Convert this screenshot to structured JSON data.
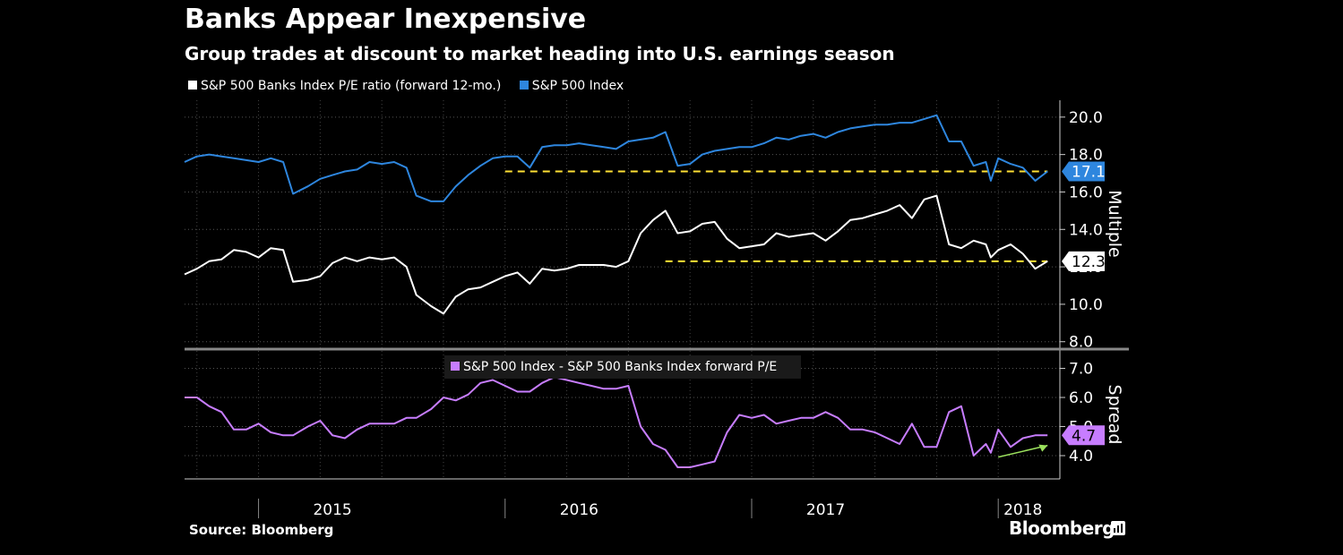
{
  "title": "Banks Appear Inexpensive",
  "subtitle": "Group trades at discount to market heading into U.S. earnings season",
  "source": "Source: Bloomberg",
  "brand": "Bloomberg",
  "colors": {
    "banks": "#ffffff",
    "sp500": "#2e86de",
    "spread": "#c77dff",
    "reference": "#ffe135",
    "arrow": "#9be15d"
  },
  "chart_data": [
    {
      "type": "line",
      "panel": "top",
      "ylabel": "Multiple",
      "ylim": [
        7.7,
        20.9
      ],
      "yticks": [
        8.0,
        10.0,
        12.0,
        14.0,
        16.0,
        18.0,
        20.0
      ],
      "ytick_labels": [
        "8.0",
        "10.0",
        "12.0",
        "14.0",
        "16.0",
        "18.0",
        "20.0"
      ],
      "xlim": [
        2014.7,
        2018.25
      ],
      "grid": true,
      "legend_position": "top-left",
      "series": [
        {
          "name": "S&P 500 Banks Index P/E ratio (forward 12-mo.)",
          "color": "#ffffff",
          "last_label": "12.3",
          "x": [
            2014.7,
            2014.75,
            2014.8,
            2014.85,
            2014.9,
            2014.95,
            2015.0,
            2015.05,
            2015.1,
            2015.14,
            2015.2,
            2015.25,
            2015.3,
            2015.35,
            2015.4,
            2015.45,
            2015.5,
            2015.55,
            2015.6,
            2015.64,
            2015.7,
            2015.75,
            2015.8,
            2015.85,
            2015.9,
            2015.95,
            2016.0,
            2016.05,
            2016.1,
            2016.15,
            2016.2,
            2016.25,
            2016.3,
            2016.35,
            2016.4,
            2016.45,
            2016.5,
            2016.55,
            2016.6,
            2016.65,
            2016.7,
            2016.75,
            2016.8,
            2016.85,
            2016.9,
            2016.95,
            2017.0,
            2017.05,
            2017.1,
            2017.15,
            2017.2,
            2017.25,
            2017.3,
            2017.35,
            2017.4,
            2017.45,
            2017.5,
            2017.55,
            2017.6,
            2017.65,
            2017.7,
            2017.75,
            2017.8,
            2017.85,
            2017.9,
            2017.95,
            2017.97,
            2018.0,
            2018.05,
            2018.1,
            2018.15,
            2018.2
          ],
          "y": [
            11.6,
            11.9,
            12.3,
            12.4,
            12.9,
            12.8,
            12.5,
            13.0,
            12.9,
            11.2,
            11.3,
            11.5,
            12.2,
            12.5,
            12.3,
            12.5,
            12.4,
            12.5,
            12.0,
            10.5,
            9.9,
            9.5,
            10.4,
            10.8,
            10.9,
            11.2,
            11.5,
            11.7,
            11.1,
            11.9,
            11.8,
            11.9,
            12.1,
            12.1,
            12.1,
            12.0,
            12.3,
            13.8,
            14.5,
            15.0,
            13.8,
            13.9,
            14.3,
            14.4,
            13.5,
            13.0,
            13.1,
            13.2,
            13.8,
            13.6,
            13.7,
            13.8,
            13.4,
            13.9,
            14.5,
            14.6,
            14.8,
            15.0,
            15.3,
            14.6,
            15.6,
            15.8,
            13.2,
            13.0,
            13.4,
            13.2,
            12.5,
            12.9,
            13.2,
            12.7,
            11.9,
            12.3
          ]
        },
        {
          "name": "S&P 500 Index",
          "color": "#2e86de",
          "last_label": "17.1",
          "x": [
            2014.7,
            2014.75,
            2014.8,
            2014.85,
            2014.9,
            2014.95,
            2015.0,
            2015.05,
            2015.1,
            2015.14,
            2015.2,
            2015.25,
            2015.3,
            2015.35,
            2015.4,
            2015.45,
            2015.5,
            2015.55,
            2015.6,
            2015.64,
            2015.7,
            2015.75,
            2015.8,
            2015.85,
            2015.9,
            2015.95,
            2016.0,
            2016.05,
            2016.1,
            2016.15,
            2016.2,
            2016.25,
            2016.3,
            2016.35,
            2016.4,
            2016.45,
            2016.5,
            2016.55,
            2016.6,
            2016.65,
            2016.7,
            2016.75,
            2016.8,
            2016.85,
            2016.9,
            2016.95,
            2017.0,
            2017.05,
            2017.1,
            2017.15,
            2017.2,
            2017.25,
            2017.3,
            2017.35,
            2017.4,
            2017.45,
            2017.5,
            2017.55,
            2017.6,
            2017.65,
            2017.7,
            2017.75,
            2017.8,
            2017.85,
            2017.9,
            2017.95,
            2017.97,
            2018.0,
            2018.05,
            2018.1,
            2018.15,
            2018.2
          ],
          "y": [
            17.6,
            17.9,
            18.0,
            17.9,
            17.8,
            17.7,
            17.6,
            17.8,
            17.6,
            15.9,
            16.3,
            16.7,
            16.9,
            17.1,
            17.2,
            17.6,
            17.5,
            17.6,
            17.3,
            15.8,
            15.5,
            15.5,
            16.3,
            16.9,
            17.4,
            17.8,
            17.9,
            17.9,
            17.3,
            18.4,
            18.5,
            18.5,
            18.6,
            18.5,
            18.4,
            18.3,
            18.7,
            18.8,
            18.9,
            19.2,
            17.4,
            17.5,
            18.0,
            18.2,
            18.3,
            18.4,
            18.4,
            18.6,
            18.9,
            18.8,
            19.0,
            19.1,
            18.9,
            19.2,
            19.4,
            19.5,
            19.6,
            19.6,
            19.7,
            19.7,
            19.9,
            20.1,
            18.7,
            18.7,
            17.4,
            17.6,
            16.6,
            17.8,
            17.5,
            17.3,
            16.6,
            17.1
          ]
        }
      ],
      "reference_lines": [
        {
          "series": "S&P 500 Index",
          "y": 17.1,
          "x_start": 2016.0,
          "x_end": 2018.2
        },
        {
          "series": "S&P 500 Banks Index P/E ratio (forward 12-mo.)",
          "y": 12.3,
          "x_start": 2016.65,
          "x_end": 2018.2
        }
      ]
    },
    {
      "type": "line",
      "panel": "bottom",
      "ylabel": "Spread",
      "ylim": [
        3.2,
        7.6
      ],
      "yticks": [
        4.0,
        5.0,
        6.0,
        7.0
      ],
      "ytick_labels": [
        "4.0",
        "5.0",
        "6.0",
        "7.0"
      ],
      "xlim": [
        2014.7,
        2018.25
      ],
      "grid": true,
      "legend_position": "top-center",
      "series": [
        {
          "name": "S&P 500 Index - S&P 500 Banks Index forward P/E",
          "color": "#c77dff",
          "last_label": "4.7",
          "x": [
            2014.7,
            2014.75,
            2014.8,
            2014.85,
            2014.9,
            2014.95,
            2015.0,
            2015.05,
            2015.1,
            2015.14,
            2015.2,
            2015.25,
            2015.3,
            2015.35,
            2015.4,
            2015.45,
            2015.5,
            2015.55,
            2015.6,
            2015.64,
            2015.7,
            2015.75,
            2015.8,
            2015.85,
            2015.9,
            2015.95,
            2016.0,
            2016.05,
            2016.1,
            2016.15,
            2016.2,
            2016.25,
            2016.3,
            2016.35,
            2016.4,
            2016.45,
            2016.5,
            2016.55,
            2016.6,
            2016.65,
            2016.7,
            2016.75,
            2016.8,
            2016.85,
            2016.9,
            2016.95,
            2017.0,
            2017.05,
            2017.1,
            2017.15,
            2017.2,
            2017.25,
            2017.3,
            2017.35,
            2017.4,
            2017.45,
            2017.5,
            2017.55,
            2017.6,
            2017.65,
            2017.7,
            2017.75,
            2017.8,
            2017.85,
            2017.9,
            2017.95,
            2017.97,
            2018.0,
            2018.05,
            2018.1,
            2018.15,
            2018.2
          ],
          "y": [
            6.0,
            6.0,
            5.7,
            5.5,
            4.9,
            4.9,
            5.1,
            4.8,
            4.7,
            4.7,
            5.0,
            5.2,
            4.7,
            4.6,
            4.9,
            5.1,
            5.1,
            5.1,
            5.3,
            5.3,
            5.6,
            6.0,
            5.9,
            6.1,
            6.5,
            6.6,
            6.4,
            6.2,
            6.2,
            6.5,
            6.7,
            6.6,
            6.5,
            6.4,
            6.3,
            6.3,
            6.4,
            5.0,
            4.4,
            4.2,
            3.6,
            3.6,
            3.7,
            3.8,
            4.8,
            5.4,
            5.3,
            5.4,
            5.1,
            5.2,
            5.3,
            5.3,
            5.5,
            5.3,
            4.9,
            4.9,
            4.8,
            4.6,
            4.4,
            5.1,
            4.3,
            4.3,
            5.5,
            5.7,
            4.0,
            4.4,
            4.1,
            4.9,
            4.3,
            4.6,
            4.7,
            4.7
          ]
        }
      ],
      "annotation": "arrow"
    }
  ],
  "x_axis": {
    "ticks": [
      2015.3,
      2016.3,
      2017.3,
      2018.1
    ],
    "labels": [
      "2015",
      "2016",
      "2017",
      "2018"
    ],
    "year_boundaries": [
      2015.0,
      2016.0,
      2017.0,
      2018.0
    ]
  }
}
